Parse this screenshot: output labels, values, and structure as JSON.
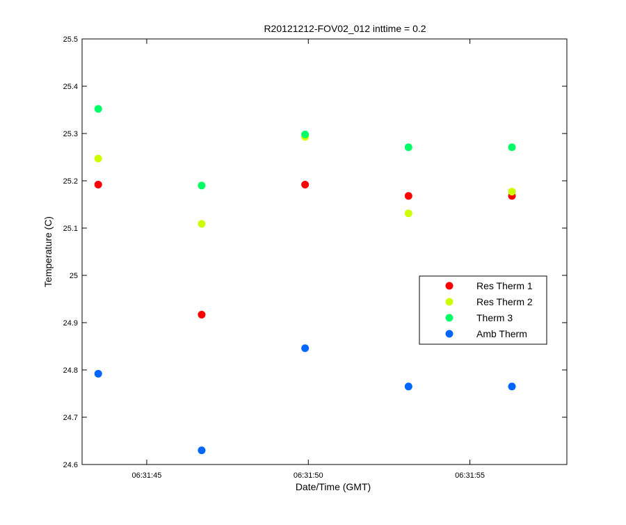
{
  "chart_data": {
    "type": "scatter",
    "title": "R20121212-FOV02_012 inttime = 0.2",
    "xlabel": "Date/Time (GMT)",
    "ylabel": "Temperature (C)",
    "x_unit": "time (HH:MM:SS, GMT)",
    "xlim": [
      "06:31:43",
      "06:31:58"
    ],
    "ylim": [
      24.6,
      25.5
    ],
    "x_ticks": [
      "06:31:45",
      "06:31:50",
      "06:31:55"
    ],
    "y_ticks": [
      "24.6",
      "24.7",
      "24.8",
      "24.9",
      "25",
      "25.1",
      "25.2",
      "25.3",
      "25.4",
      "25.5"
    ],
    "grid": false,
    "legend_position": "right",
    "x": [
      "06:31:43.5",
      "06:31:46.7",
      "06:31:49.9",
      "06:31:53.1",
      "06:31:56.3"
    ],
    "series": [
      {
        "name": "Res Therm 1",
        "color": "#ff0000",
        "values": [
          25.192,
          24.917,
          25.192,
          25.168,
          25.168
        ]
      },
      {
        "name": "Res Therm 2",
        "color": "#ccff00",
        "values": [
          25.247,
          25.109,
          25.293,
          25.131,
          25.177
        ]
      },
      {
        "name": "Therm 3",
        "color": "#00ff66",
        "values": [
          25.352,
          25.19,
          25.298,
          25.271,
          25.271
        ]
      },
      {
        "name": "Amb Therm",
        "color": "#0066ff",
        "values": [
          24.792,
          24.63,
          24.846,
          24.765,
          24.765
        ]
      }
    ]
  }
}
